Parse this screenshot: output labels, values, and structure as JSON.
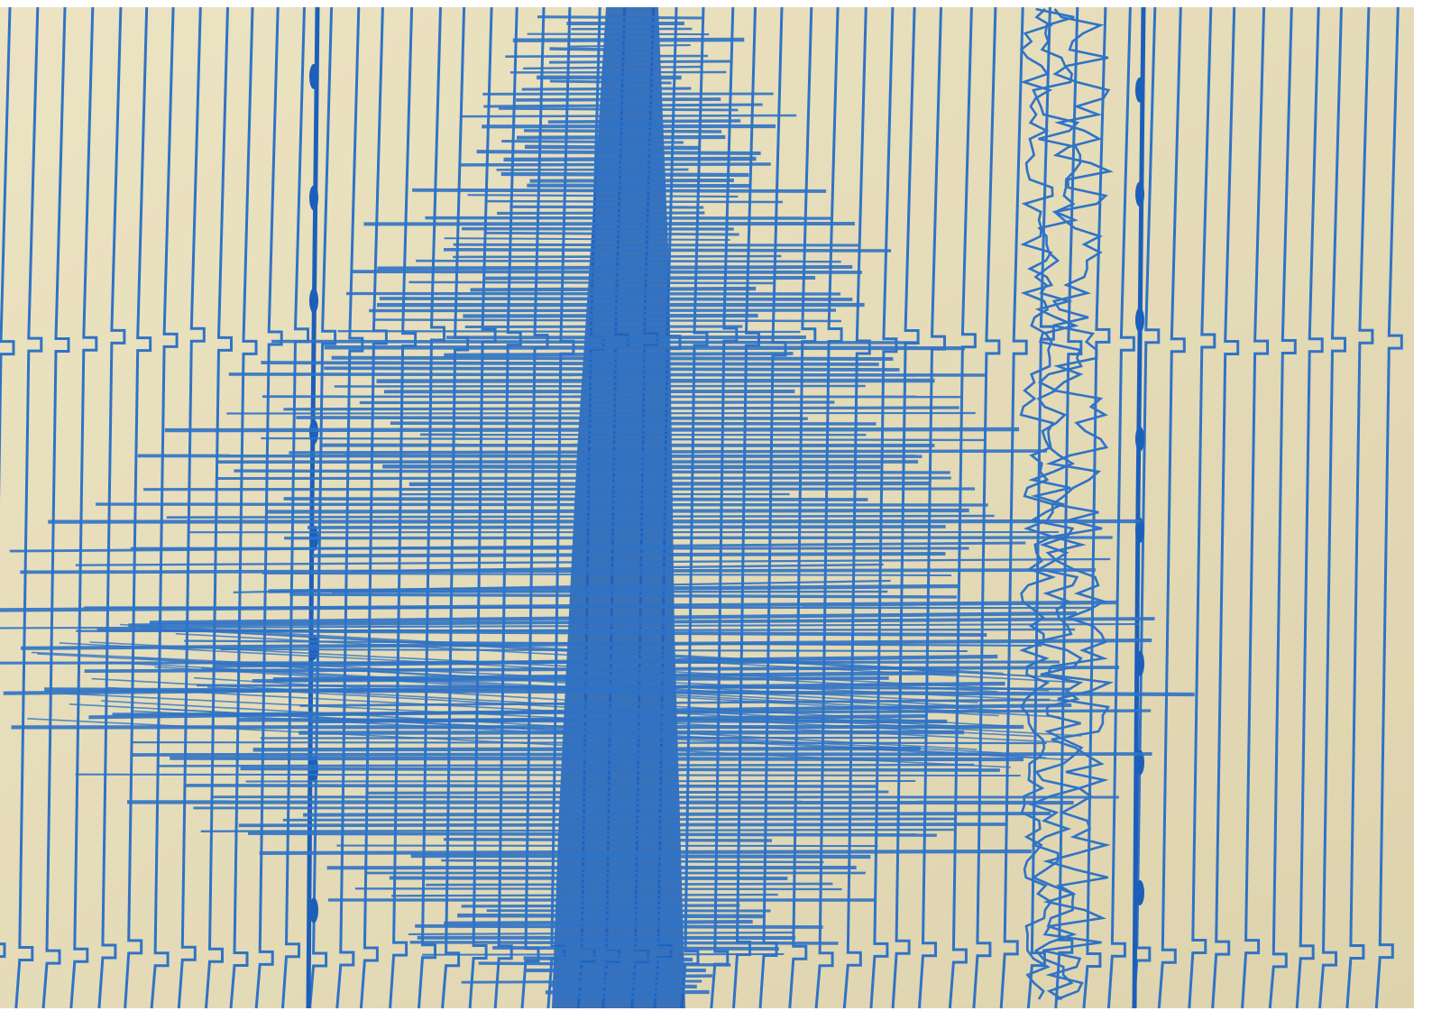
{
  "image": {
    "subject": "seismograph-recording",
    "colors": {
      "paper": "#e9e0bd",
      "paper_shade": "#ddd3ad",
      "ink": "#2f73c6",
      "ink_dark": "#1c5fba",
      "border": "#ffffff"
    }
  }
}
